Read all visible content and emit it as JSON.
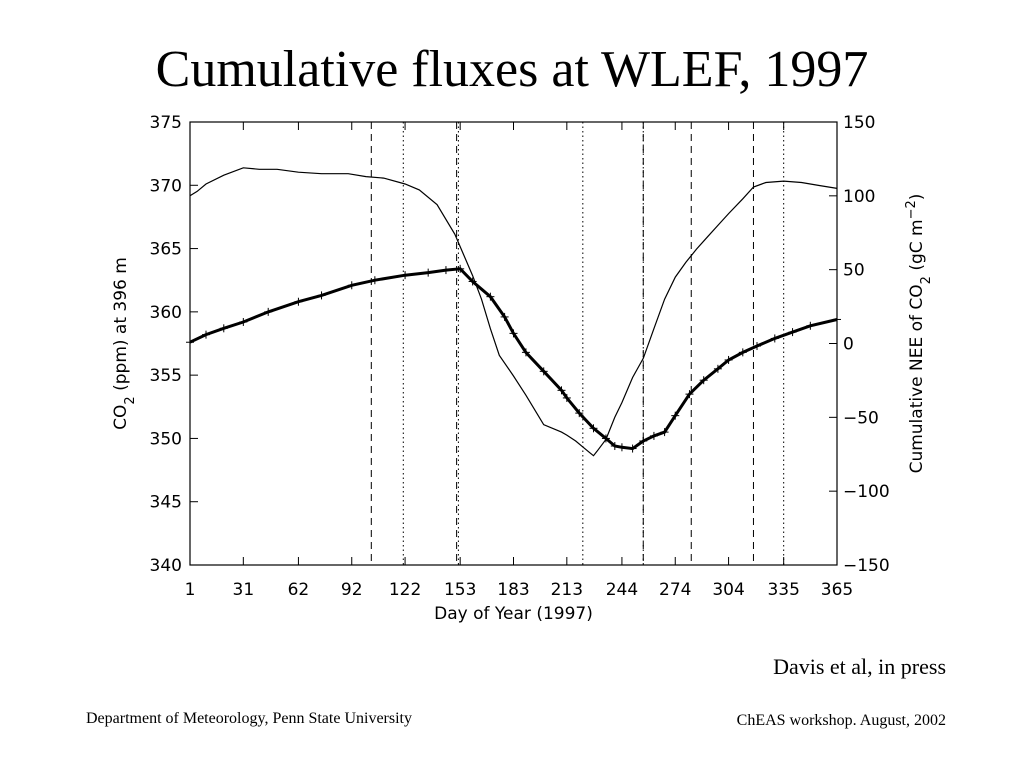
{
  "slide": {
    "title": "Cumulative fluxes at WLEF, 1997",
    "citation": "Davis et al, in press",
    "footer_left": "Department of Meteorology, Penn State University",
    "footer_right": "ChEAS workshop. August, 2002"
  },
  "chart_data": {
    "type": "line",
    "xlabel": "Day of Year (1997)",
    "ylabel_left": {
      "prefix": "CO",
      "sub": "2",
      "suffix": " (ppm) at 396 m"
    },
    "ylabel_right": {
      "prefix": "Cumulative NEE of CO",
      "sub": "2",
      "mid": " (gC m",
      "sup": "−2",
      "suffix": ")"
    },
    "xlim": [
      1,
      365
    ],
    "ylim_left": [
      340,
      375
    ],
    "ylim_right": [
      -150,
      150
    ],
    "x_ticks": [
      1,
      31,
      62,
      92,
      122,
      153,
      183,
      213,
      244,
      274,
      304,
      335,
      365
    ],
    "y_ticks_left": [
      340,
      345,
      350,
      355,
      360,
      365,
      370,
      375
    ],
    "y_ticks_right": [
      -150,
      -100,
      -50,
      0,
      50,
      100,
      150
    ],
    "y_ticks_right_labels": [
      "−150",
      "−100",
      "−50",
      "0",
      "50",
      "100",
      "150"
    ],
    "vlines": [
      {
        "x": 103,
        "style": "dashed"
      },
      {
        "x": 121,
        "style": "dotted"
      },
      {
        "x": 151,
        "style": "dashed"
      },
      {
        "x": 152,
        "style": "dotted"
      },
      {
        "x": 222,
        "style": "dotted"
      },
      {
        "x": 256,
        "style": "dashed"
      },
      {
        "x": 256,
        "style": "dotted"
      },
      {
        "x": 283,
        "style": "dashed"
      },
      {
        "x": 318,
        "style": "dashed"
      },
      {
        "x": 335,
        "style": "dotted"
      }
    ],
    "series": [
      {
        "axis": "right",
        "style": "line",
        "x": [
          1,
          5,
          10,
          20,
          31,
          40,
          50,
          62,
          75,
          90,
          100,
          110,
          122,
          130,
          140,
          150,
          155,
          160,
          165,
          170,
          175,
          183,
          190,
          200,
          210,
          213,
          218,
          222,
          226,
          228,
          230,
          235,
          240,
          244,
          250,
          256,
          262,
          268,
          274,
          280,
          286,
          292,
          298,
          304,
          312,
          318,
          325,
          335,
          345,
          355,
          365
        ],
        "y": [
          100,
          103,
          108,
          114,
          119,
          118,
          118,
          116,
          115,
          115,
          113,
          112,
          108,
          104,
          94,
          74,
          60,
          46,
          30,
          10,
          -8,
          -22,
          -35,
          -55,
          -60,
          -62,
          -66,
          -70,
          -74,
          -76,
          -73,
          -65,
          -50,
          -40,
          -23,
          -10,
          10,
          30,
          45,
          55,
          64,
          72,
          80,
          88,
          98,
          106,
          109,
          110,
          109,
          107,
          105
        ]
      },
      {
        "axis": "left",
        "style": "markers",
        "x": [
          1,
          10,
          20,
          31,
          45,
          62,
          75,
          92,
          105,
          122,
          135,
          145,
          153,
          160,
          170,
          178,
          183,
          190,
          200,
          210,
          213,
          220,
          228,
          235,
          240,
          244,
          250,
          256,
          262,
          268,
          274,
          282,
          290,
          298,
          304,
          312,
          320,
          330,
          340,
          350,
          365
        ],
        "y": [
          357.6,
          358.2,
          358.7,
          359.2,
          360.0,
          360.8,
          361.3,
          362.1,
          362.5,
          362.9,
          363.1,
          363.3,
          363.4,
          362.4,
          361.2,
          359.6,
          358.3,
          356.8,
          355.3,
          353.8,
          353.2,
          352.0,
          350.8,
          350.0,
          349.4,
          349.3,
          349.2,
          349.8,
          350.2,
          350.5,
          351.8,
          353.5,
          354.6,
          355.5,
          356.2,
          356.8,
          357.3,
          357.9,
          358.4,
          358.9,
          359.4
        ]
      }
    ]
  }
}
